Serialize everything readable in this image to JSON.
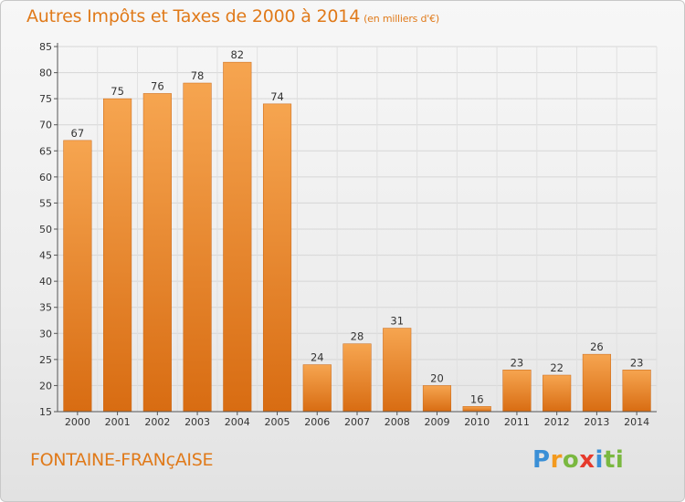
{
  "header": {
    "title": "Autres Impôts et Taxes de 2000 à 2014",
    "unit": "(en milliers d'€)"
  },
  "footer": {
    "place": "FONTAINE-FRANçAISE",
    "logo": [
      "P",
      "r",
      "o",
      "x",
      "i",
      "t",
      "i"
    ]
  },
  "chart_data": {
    "type": "bar",
    "title": "Autres Impôts et Taxes de 2000 à 2014",
    "subtitle": "(en milliers d'€)",
    "categories": [
      "2000",
      "2001",
      "2002",
      "2003",
      "2004",
      "2005",
      "2006",
      "2007",
      "2008",
      "2009",
      "2010",
      "2011",
      "2012",
      "2013",
      "2014"
    ],
    "values": [
      67,
      75,
      76,
      78,
      82,
      74,
      24,
      28,
      31,
      20,
      16,
      23,
      22,
      26,
      23
    ],
    "ylim": [
      15,
      85
    ],
    "yticks": [
      15,
      20,
      25,
      30,
      35,
      40,
      45,
      50,
      55,
      60,
      65,
      70,
      75,
      80,
      85
    ],
    "grid": true,
    "bar_color": "#f0902e"
  }
}
